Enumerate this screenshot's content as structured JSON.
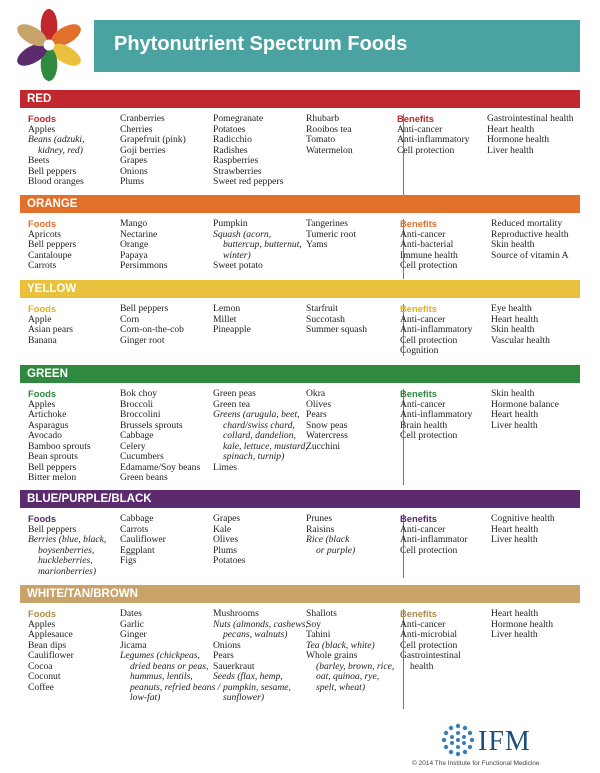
{
  "title": "Phytonutrient Spectrum Foods",
  "colors": {
    "banner": "#4aa3a0",
    "red": "#c0282d",
    "orange": "#e0702a",
    "yellow": "#e9c13c",
    "green": "#2f8a3f",
    "purple": "#5b2b6e",
    "tan": "#c8a36a"
  },
  "sections": {
    "red": {
      "name": "RED",
      "foods_label": "Foods",
      "col1": [
        "Apples",
        "Beans (adzuki,",
        "kidney, red)",
        "Beets",
        "Bell peppers",
        "Blood oranges"
      ],
      "col2": [
        "Cranberries",
        "Cherries",
        "Grapefruit (pink)",
        "Goji berries",
        "Grapes",
        "Onions",
        "Plums"
      ],
      "col3": [
        "Pomegranate",
        "Potatoes",
        "Radicchio",
        "Radishes",
        "Raspberries",
        "Strawberries",
        "Sweet red peppers"
      ],
      "col4": [
        "Rhubarb",
        "Rooibos tea",
        "Tomato",
        "Watermelon"
      ],
      "benefits_label": "Benefits",
      "ben1": [
        "Anti-cancer",
        "Anti-inflammatory",
        "Cell protection"
      ],
      "ben2": [
        "Gastrointestinal health",
        "Heart health",
        "Hormone health",
        "Liver health"
      ]
    },
    "orange": {
      "name": "ORANGE",
      "foods_label": "Foods",
      "col1": [
        "Apricots",
        "Bell peppers",
        "Cantaloupe",
        "Carrots"
      ],
      "col2": [
        "Mango",
        "Nectarine",
        "Orange",
        "Papaya",
        "Persimmons"
      ],
      "col3": [
        "Pumpkin",
        "Squash (acorn,",
        "buttercup, butternut,",
        "winter)",
        "Sweet potato"
      ],
      "col4": [
        "Tangerines",
        "Tumeric root",
        "Yams"
      ],
      "benefits_label": "Benefits",
      "ben1": [
        "Anti-cancer",
        "Anti-bacterial",
        "Immune health",
        "Cell protection"
      ],
      "ben2": [
        "Reduced mortality",
        "Reproductive health",
        "Skin health",
        "Source of vitamin A"
      ]
    },
    "yellow": {
      "name": "YELLOW",
      "foods_label": "Foods",
      "col1": [
        "Apple",
        "Asian pears",
        "Banana"
      ],
      "col2": [
        "Bell peppers",
        "Corn",
        "Corn-on-the-cob",
        "Ginger root"
      ],
      "col3": [
        "Lemon",
        "Millet",
        "Pineapple"
      ],
      "col4": [
        "Starfruit",
        "Succotash",
        "Summer squash"
      ],
      "benefits_label": "Benefits",
      "ben1": [
        "Anti-cancer",
        "Anti-inflammatory",
        "Cell protection",
        "Cognition"
      ],
      "ben2": [
        "Eye health",
        "Heart health",
        "Skin health",
        "Vascular health"
      ]
    },
    "green": {
      "name": "GREEN",
      "foods_label": "Foods",
      "col1": [
        "Apples",
        "Artichoke",
        "Asparagus",
        "Avocado",
        "Bamboo sprouts",
        "Bean sprouts",
        "Bell peppers",
        "Bitter melon"
      ],
      "col2": [
        "Bok choy",
        "Broccoli",
        "Broccolini",
        "Brussels sprouts",
        "Cabbage",
        "Celery",
        "Cucumbers",
        "Edamame/Soy beans",
        "Green beans"
      ],
      "col3": [
        "Green peas",
        "Green tea",
        "Greens (arugula, beet,",
        "chard/swiss chard,",
        "collard, dandelion,",
        "kale, lettuce, mustard,",
        "spinach, turnip)",
        "Limes"
      ],
      "col4": [
        "Okra",
        "Olives",
        "Pears",
        "Snow peas",
        "Watercress",
        "Zucchini"
      ],
      "benefits_label": "Benefits",
      "ben1": [
        "Anti-cancer",
        "Anti-inflammatory",
        "Brain health",
        "Cell protection"
      ],
      "ben2": [
        "Skin health",
        "Hormone balance",
        "Heart health",
        "Liver health"
      ]
    },
    "purple": {
      "name": "BLUE/PURPLE/BLACK",
      "foods_label": "Foods",
      "col1": [
        "Bell peppers",
        "Berries (blue, black,",
        "boysenberries,",
        "huckleberries,",
        "marionberries)"
      ],
      "col2": [
        "Cabbage",
        "Carrots",
        "Cauliflower",
        "Eggplant",
        "Figs"
      ],
      "col3": [
        "Grapes",
        "Kale",
        "Olives",
        "Plums",
        "Potatoes"
      ],
      "col4": [
        "Prunes",
        "Raisins",
        "Rice (black",
        "or purple)"
      ],
      "benefits_label": "Benefits",
      "ben1": [
        "Anti-cancer",
        "Anti-inflammator",
        "Cell protection"
      ],
      "ben2": [
        "Cognitive health",
        "Heart health",
        "Liver health"
      ]
    },
    "tan": {
      "name": "WHITE/TAN/BROWN",
      "foods_label": "Foods",
      "col1": [
        "Apples",
        "Applesauce",
        "Bean dips",
        "Cauliflower",
        "Cocoa",
        "Coconut",
        "Coffee"
      ],
      "col2": [
        "Dates",
        "Garlic",
        "Ginger",
        "Jicama",
        "Legumes (chickpeas,",
        "dried beans or peas,",
        "hummus, lentils,",
        "peanuts, refried beans /",
        "low-fat)"
      ],
      "col3": [
        "Mushrooms",
        "Nuts (almonds, cashews,",
        "pecans, walnuts)",
        "Onions",
        "Pears",
        "Sauerkraut",
        "Seeds (flax, hemp,",
        "pumpkin, sesame,",
        "sunflower)"
      ],
      "col4": [
        "Shallots",
        "Soy",
        "Tahini",
        "Tea (black, white)",
        "Whole grains",
        "(barley, brown, rice,",
        "oat, quinoa, rye,",
        "spelt, wheat)"
      ],
      "benefits_label": "Benefits",
      "ben1": [
        "Anti-cancer",
        "Anti-microbial",
        "Cell protection",
        "Gastrointestinal",
        "health"
      ],
      "ben2": [
        "Heart health",
        "Hormone health",
        "Liver health"
      ]
    }
  },
  "footer": {
    "logo_text": "IFM",
    "copyright": "© 2014 The Institute for Functional Medicine"
  }
}
